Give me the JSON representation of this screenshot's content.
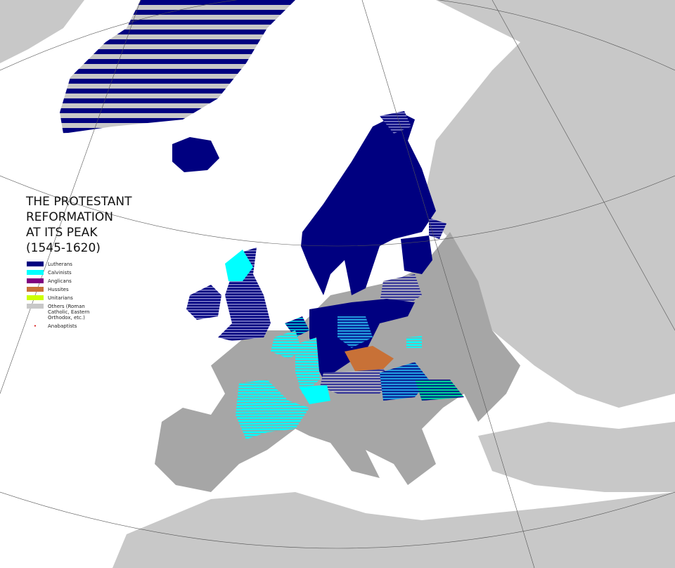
{
  "title": "THE PROTESTANT\nREFORMATION\nAT ITS PEAK\n(1545-1620)",
  "legend": [
    {
      "label": "Lutherans",
      "color": "#000080"
    },
    {
      "label": "Calvinists",
      "color": "#00ffff"
    },
    {
      "label": "Anglicans",
      "color": "#800080"
    },
    {
      "label": "Hussites",
      "color": "#c87137"
    },
    {
      "label": "Unitarians",
      "color": "#ccff00"
    },
    {
      "label": "Others (Roman Catholic, Eastern Orthodox, etc.)",
      "color": "#c8c8c8"
    },
    {
      "label": "Anabaptists",
      "color": "#d40000",
      "symbol": "dot"
    }
  ],
  "colors": {
    "sea": "#ffffff",
    "land": "#a6a6a6",
    "outer_land": "#c8c8c8",
    "borders": "#ffffff"
  }
}
